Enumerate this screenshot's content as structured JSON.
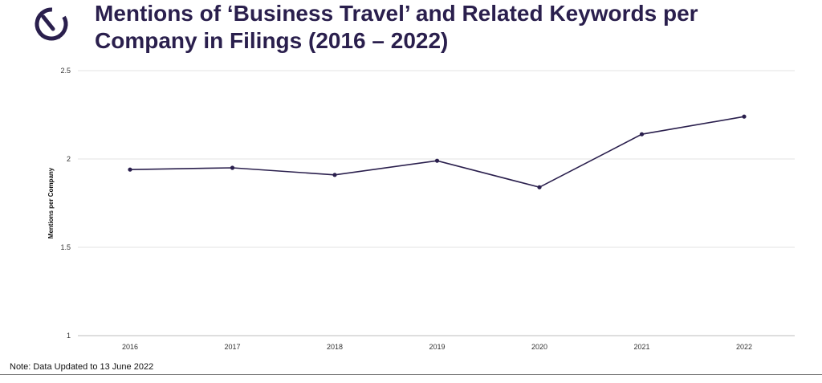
{
  "header": {
    "title": "Mentions of ‘Business Travel’ and Related Keywords per Company in Filings (2016 – 2022)",
    "logo_icon": "brand-logo-icon",
    "accent_color": "#2a1f4d"
  },
  "note": "Note: Data Updated to 13 June 2022",
  "chart_data": {
    "type": "line",
    "title": "Mentions of ‘Business Travel’ and Related Keywords per Company in Filings (2016 – 2022)",
    "xlabel": "",
    "ylabel": "Mentions per Company",
    "categories": [
      "2016",
      "2017",
      "2018",
      "2019",
      "2020",
      "2021",
      "2022"
    ],
    "series": [
      {
        "values": [
          1.94,
          1.95,
          1.91,
          1.99,
          1.84,
          2.14,
          2.24
        ],
        "color": "#2a1f4d"
      }
    ],
    "ylim": [
      1,
      2.5
    ],
    "yticks": [
      "1",
      "1.5",
      "2",
      "2.5"
    ],
    "grid": true,
    "legend": "none"
  }
}
